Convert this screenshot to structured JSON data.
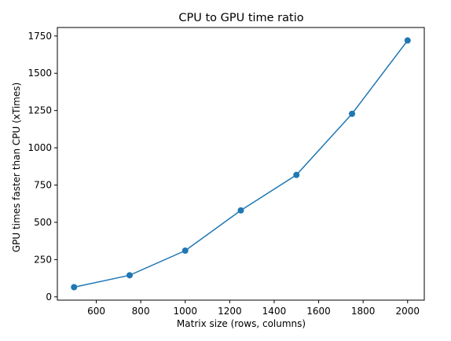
{
  "chart_data": {
    "type": "line",
    "title": "CPU to GPU time ratio",
    "xlabel": "Matrix size (rows, columns)",
    "ylabel": "GPU times faster than CPU (xTimes)",
    "xlim": [
      425,
      2075
    ],
    "ylim": [
      -22,
      1807
    ],
    "x_ticks": [
      600,
      800,
      1000,
      1200,
      1400,
      1600,
      1800,
      2000
    ],
    "y_ticks": [
      0,
      250,
      500,
      750,
      1000,
      1250,
      1500,
      1750
    ],
    "grid": false,
    "series": [
      {
        "color": "#1f77b4",
        "marker": "circle",
        "x": [
          500,
          750,
          1000,
          1250,
          1500,
          1750,
          2000
        ],
        "y": [
          65,
          145,
          310,
          580,
          818,
          1228,
          1720
        ]
      }
    ]
  }
}
